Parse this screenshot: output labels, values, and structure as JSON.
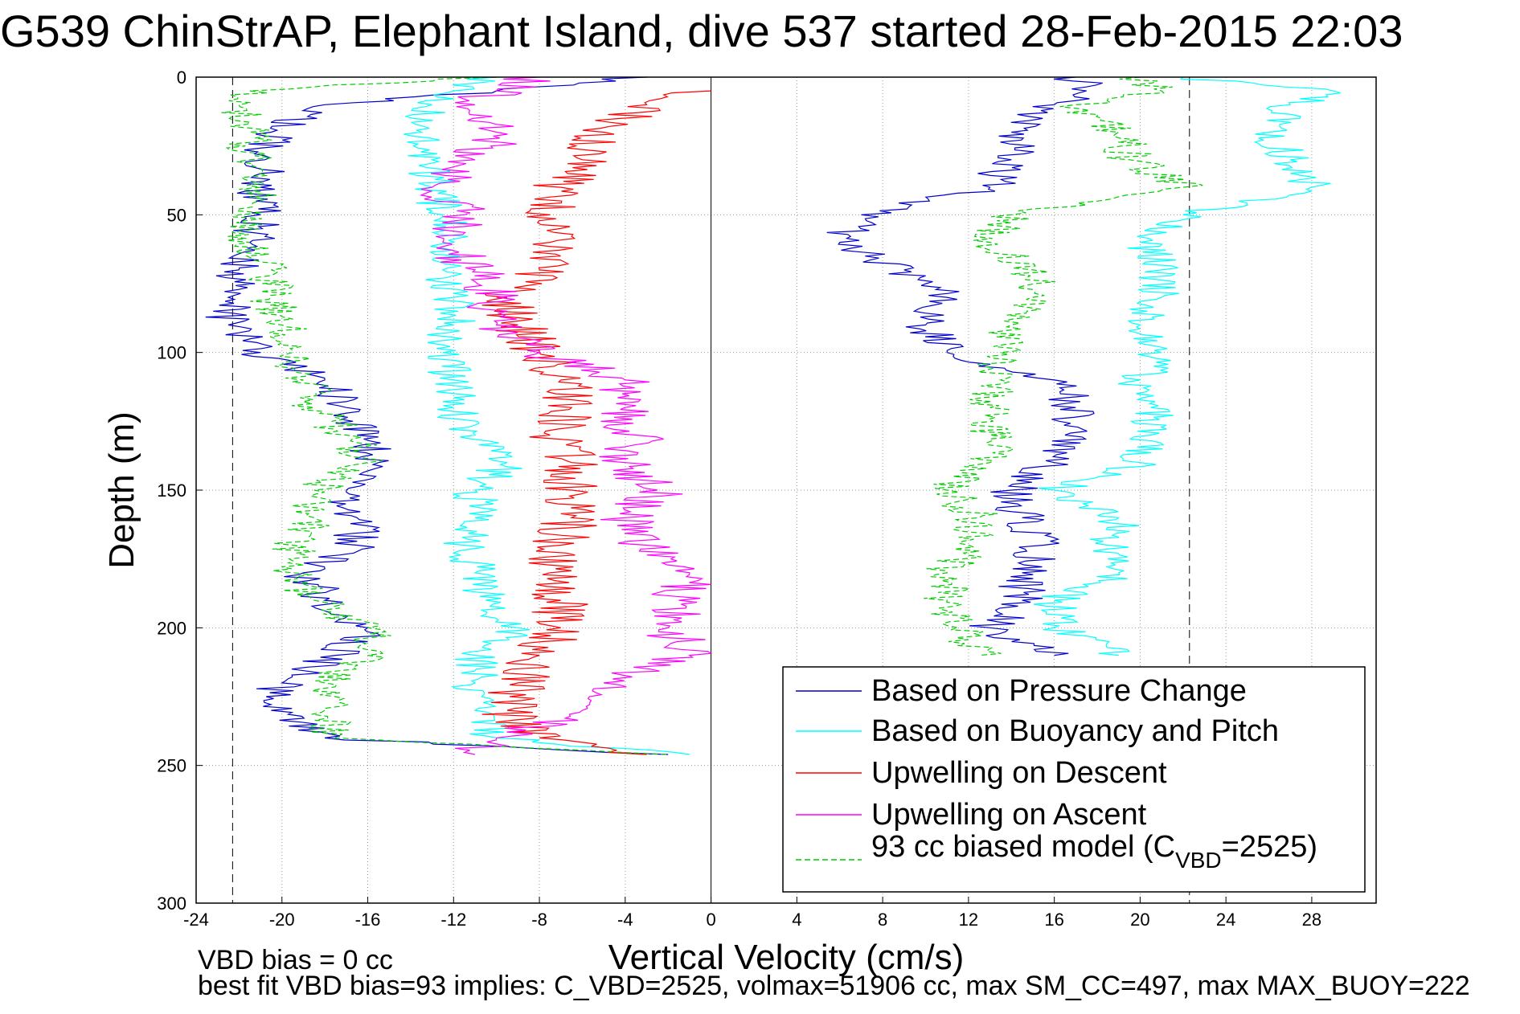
{
  "chart_data": {
    "type": "line",
    "title": "G539 ChinStrAP, Elephant Island, dive 537 started 28-Feb-2015 22:03",
    "xlabel": "Vertical Velocity (cm/s)",
    "ylabel": "Depth (m)",
    "xlim": [
      -24,
      31
    ],
    "ylim": [
      0,
      300
    ],
    "y_reversed": true,
    "xticks": [
      -24,
      -20,
      -16,
      -12,
      -8,
      -4,
      0,
      4,
      8,
      12,
      16,
      20,
      24,
      28
    ],
    "yticks": [
      0,
      50,
      100,
      150,
      200,
      250,
      300
    ],
    "grid": true,
    "legend_position": "bottom-right",
    "reference_lines": {
      "vertical_zero": 0,
      "dashed_bounds": [
        -22.3,
        22.3
      ]
    },
    "footer_lines": [
      "VBD bias = 0 cc",
      "best fit VBD bias=93 implies: C_VBD=2525, volmax=51906 cc, max SM_CC=497, max MAX_BUOY=222"
    ],
    "series": [
      {
        "name": "Based on Pressure Change",
        "color": "#0000cc",
        "style": "solid",
        "depth": [
          0,
          5,
          10,
          20,
          30,
          40,
          50,
          60,
          70,
          80,
          90,
          100,
          110,
          120,
          130,
          140,
          150,
          160,
          170,
          180,
          190,
          200,
          210,
          220,
          230,
          240,
          246
        ],
        "descent": [
          -3,
          -10,
          -18,
          -20.5,
          -20.8,
          -21,
          -21,
          -21.5,
          -22,
          -22.5,
          -22.5,
          -21,
          -18,
          -17,
          -16.5,
          -15.5,
          -17,
          -16.5,
          -16.5,
          -19,
          -18,
          -16,
          -17.5,
          -20,
          -20.5,
          -18,
          -2
        ],
        "ascent": [
          17,
          17.5,
          16,
          14,
          14,
          13,
          7,
          6,
          9,
          11,
          10,
          11,
          16,
          17,
          16.5,
          16,
          14,
          14.5,
          15.5,
          14.5,
          14.5,
          13,
          16,
          null,
          null,
          null,
          null
        ]
      },
      {
        "name": "Based on Buoyancy and Pitch",
        "color": "#00ffff",
        "style": "solid",
        "depth": [
          0,
          5,
          10,
          20,
          30,
          40,
          50,
          60,
          70,
          80,
          90,
          100,
          110,
          120,
          130,
          140,
          150,
          160,
          170,
          180,
          190,
          200,
          210,
          220,
          230,
          240,
          246
        ],
        "descent": [
          -10,
          -12,
          -13,
          -13.5,
          -13,
          -13,
          -12.5,
          -12,
          -12.5,
          -12,
          -12,
          -12.5,
          -12,
          -12,
          -11,
          -9.5,
          -11,
          -11,
          -11.5,
          -11,
          -10.5,
          -9,
          -11,
          -11,
          -11,
          -10,
          -1
        ],
        "ascent": [
          22,
          29,
          27,
          26,
          27,
          28,
          22,
          20,
          21,
          21,
          20,
          21,
          20,
          20.5,
          20.5,
          20,
          16,
          19,
          18.5,
          19,
          16,
          16,
          19,
          null,
          null,
          null,
          null
        ]
      },
      {
        "name": "Upwelling on Descent",
        "color": "#ff0000",
        "style": "solid",
        "depth": [
          5,
          10,
          20,
          30,
          40,
          50,
          60,
          70,
          80,
          90,
          100,
          110,
          120,
          130,
          140,
          150,
          160,
          170,
          180,
          190,
          200,
          210,
          220,
          230,
          240,
          246
        ],
        "values": [
          0,
          -3,
          -5,
          -6,
          -7,
          -7.5,
          -7.5,
          -8,
          -9.5,
          -9,
          -8,
          -7,
          -6.5,
          -7.5,
          -6.5,
          -6.5,
          -6.5,
          -7,
          -7.5,
          -7,
          -7,
          -8,
          -9,
          -9.5,
          -8,
          -3
        ]
      },
      {
        "name": "Upwelling on Ascent",
        "color": "#ff00ff",
        "style": "solid",
        "depth": [
          0,
          5,
          10,
          20,
          30,
          40,
          50,
          60,
          70,
          80,
          90,
          100,
          110,
          120,
          130,
          140,
          150,
          160,
          170,
          180,
          190,
          200,
          210,
          220,
          230,
          240,
          246
        ],
        "values": [
          -8,
          -10,
          -11,
          -10,
          -11,
          -13,
          -11.5,
          -12.5,
          -11,
          -10,
          -10,
          -8,
          -4,
          -4,
          -3.5,
          -4,
          -2.5,
          -4,
          -3,
          -1,
          -1.5,
          -2,
          -1,
          -5,
          -6,
          -10,
          -11
        ]
      },
      {
        "name": "93 cc biased model (C_VBD=2525)",
        "color": "#00cc00",
        "style": "dashed",
        "depth": [
          0,
          5,
          10,
          20,
          30,
          40,
          50,
          60,
          70,
          80,
          90,
          100,
          110,
          120,
          130,
          140,
          150,
          160,
          170,
          180,
          190,
          200,
          210,
          220,
          230,
          240,
          246
        ],
        "descent": [
          -10,
          -21.5,
          -22,
          -21.5,
          -21.5,
          -21,
          -22,
          -21.5,
          -20.5,
          -20.5,
          -20,
          -19.5,
          -19,
          -18.5,
          -17,
          -16,
          -18.5,
          -18.5,
          -19.5,
          -19.5,
          -18.5,
          -16,
          -16,
          -18,
          -18,
          -17.5,
          -2
        ],
        "ascent": [
          20,
          21,
          17,
          19,
          19.5,
          22,
          14,
          13,
          15,
          15,
          14,
          13.5,
          13.5,
          13,
          13,
          13,
          11,
          12.5,
          12,
          11,
          11,
          11.5,
          12.5,
          null,
          null,
          null,
          null
        ]
      }
    ],
    "legend_entries": [
      "Based on Pressure Change",
      "Based on Buoyancy and Pitch",
      "Upwelling on Descent",
      "Upwelling on Ascent",
      "93 cc biased model (C"
    ],
    "legend_sub": "VBD",
    "legend_tail": "=2525)"
  }
}
